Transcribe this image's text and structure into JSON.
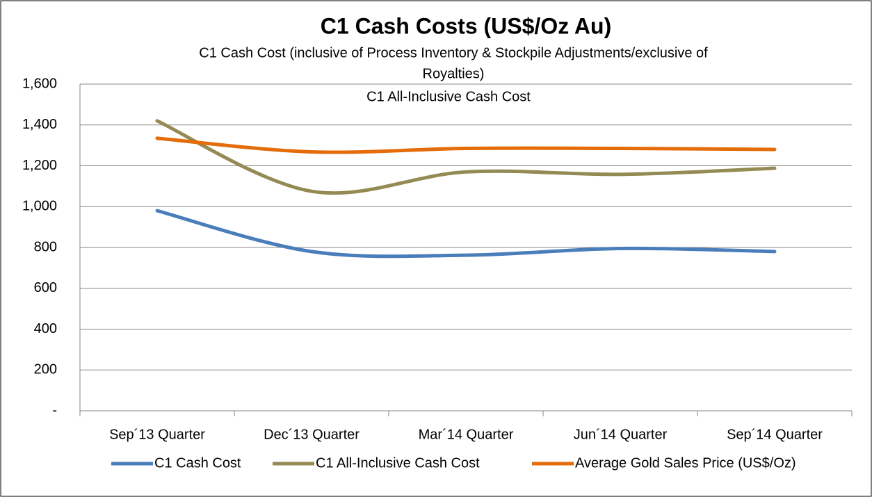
{
  "chart_data": {
    "type": "line",
    "title": "C1 Cash Costs (US$/Oz Au)",
    "subtitle_lines": [
      "C1 Cash Cost (inclusive of Process Inventory & Stockpile Adjustments/exclusive of",
      "Royalties)",
      "C1 All-Inclusive Cash Cost"
    ],
    "categories": [
      "Sep´13 Quarter",
      "Dec´13 Quarter",
      "Mar´14 Quarter",
      "Jun´14 Quarter",
      "Sep´14 Quarter"
    ],
    "series": [
      {
        "name": "C1 Cash Cost",
        "color": "#4a7ebb",
        "values": [
          980,
          780,
          762,
          795,
          780
        ]
      },
      {
        "name": "C1 All-Inclusive Cash Cost",
        "color": "#948a54",
        "values": [
          1420,
          1075,
          1170,
          1158,
          1188
        ]
      },
      {
        "name": "Average Gold Sales Price (US$/Oz)",
        "color": "#e46c0a",
        "values": [
          1335,
          1268,
          1285,
          1285,
          1280
        ]
      }
    ],
    "ylim": [
      0,
      1600
    ],
    "yticks": [
      {
        "value": 0,
        "label": "-"
      },
      200,
      400,
      600,
      800,
      {
        "value": 1000,
        "label": "1,000"
      },
      {
        "value": 1200,
        "label": "1,200"
      },
      {
        "value": 1400,
        "label": "1,400"
      },
      {
        "value": 1600,
        "label": "1,600"
      }
    ],
    "grid": true,
    "smooth": true,
    "legend": "bottom"
  }
}
